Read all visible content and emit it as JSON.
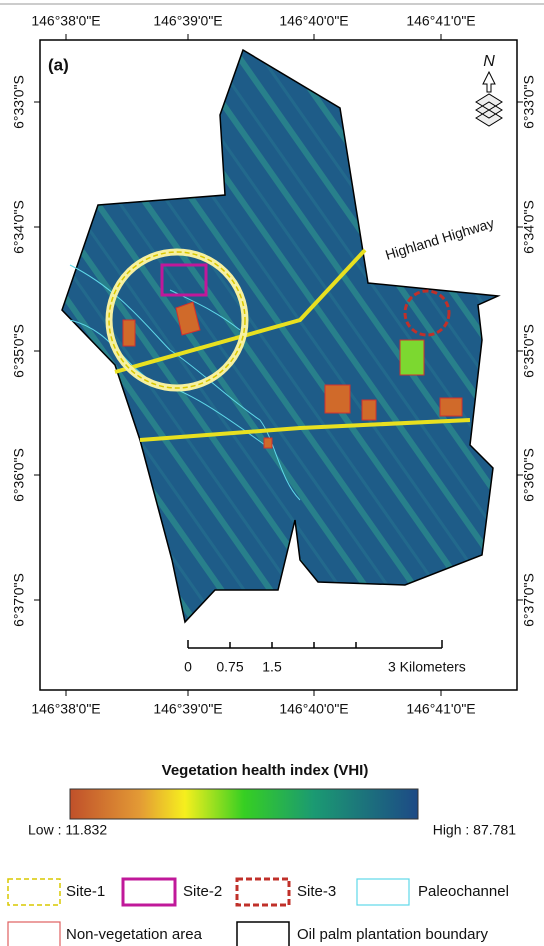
{
  "map": {
    "panel_label": "(a)",
    "north": "N",
    "top_labels": [
      "146°38'0\"E",
      "146°39'0\"E",
      "146°40'0\"E",
      "146°41'0\"E"
    ],
    "bottom_labels": [
      "146°38'0\"E",
      "146°39'0\"E",
      "146°40'0\"E",
      "146°41'0\"E"
    ],
    "left_labels": [
      "6°33'0\"S",
      "6°34'0\"S",
      "6°35'0\"S",
      "6°36'0\"S",
      "6°37'0\"S"
    ],
    "right_labels": [
      "6°33'0\"S",
      "6°34'0\"S",
      "6°35'0\"S",
      "6°36'0\"S",
      "6°37'0\"S"
    ],
    "road_label": "Highland Highway",
    "scale_bar": [
      "0",
      "0.75",
      "1.5",
      "3 Kilometers"
    ]
  },
  "legend": {
    "title": "Vegetation health index (VHI)",
    "low_label": "Low : 11.832",
    "high_label": "High : 87.781",
    "key": [
      "Site-1",
      "Site-2",
      "Site-3",
      "Paleochannel",
      "Non-vegetation area",
      "Oil palm plantation boundary"
    ]
  }
}
